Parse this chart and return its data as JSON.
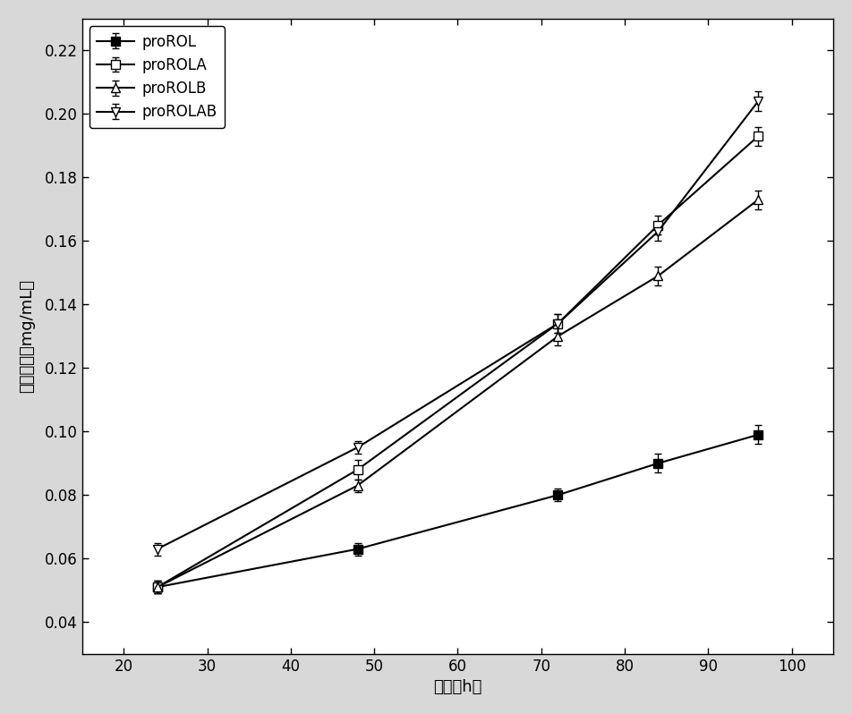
{
  "x": [
    24,
    48,
    72,
    84,
    96
  ],
  "proROL": {
    "y": [
      0.051,
      0.063,
      0.08,
      0.09,
      0.099
    ],
    "yerr": [
      0.002,
      0.002,
      0.002,
      0.003,
      0.003
    ],
    "label": "proROL",
    "marker": "s",
    "filled": true
  },
  "proROLA": {
    "y": [
      0.051,
      0.088,
      0.134,
      0.165,
      0.193
    ],
    "yerr": [
      0.002,
      0.003,
      0.003,
      0.003,
      0.003
    ],
    "label": "proROLA",
    "marker": "s",
    "filled": false
  },
  "proROLB": {
    "y": [
      0.051,
      0.083,
      0.13,
      0.149,
      0.173
    ],
    "yerr": [
      0.002,
      0.002,
      0.003,
      0.003,
      0.003
    ],
    "label": "proROLB",
    "marker": "^",
    "filled": false
  },
  "proROLAB": {
    "y": [
      0.063,
      0.095,
      0.134,
      0.163,
      0.204
    ],
    "yerr": [
      0.002,
      0.002,
      0.003,
      0.003,
      0.003
    ],
    "label": "proROLAB",
    "marker": "v",
    "filled": false
  },
  "xlabel": "时间（h）",
  "ylabel": "蛋白浓度（mg/mL）",
  "xlim": [
    15,
    105
  ],
  "ylim": [
    0.03,
    0.23
  ],
  "xticks": [
    20,
    30,
    40,
    50,
    60,
    70,
    80,
    90,
    100
  ],
  "yticks": [
    0.04,
    0.06,
    0.08,
    0.1,
    0.12,
    0.14,
    0.16,
    0.18,
    0.2,
    0.22
  ],
  "fig_bg_color": "#d8d8d8",
  "plot_bg_color": "#ffffff",
  "linewidth": 1.5,
  "markersize": 7,
  "color": "black"
}
